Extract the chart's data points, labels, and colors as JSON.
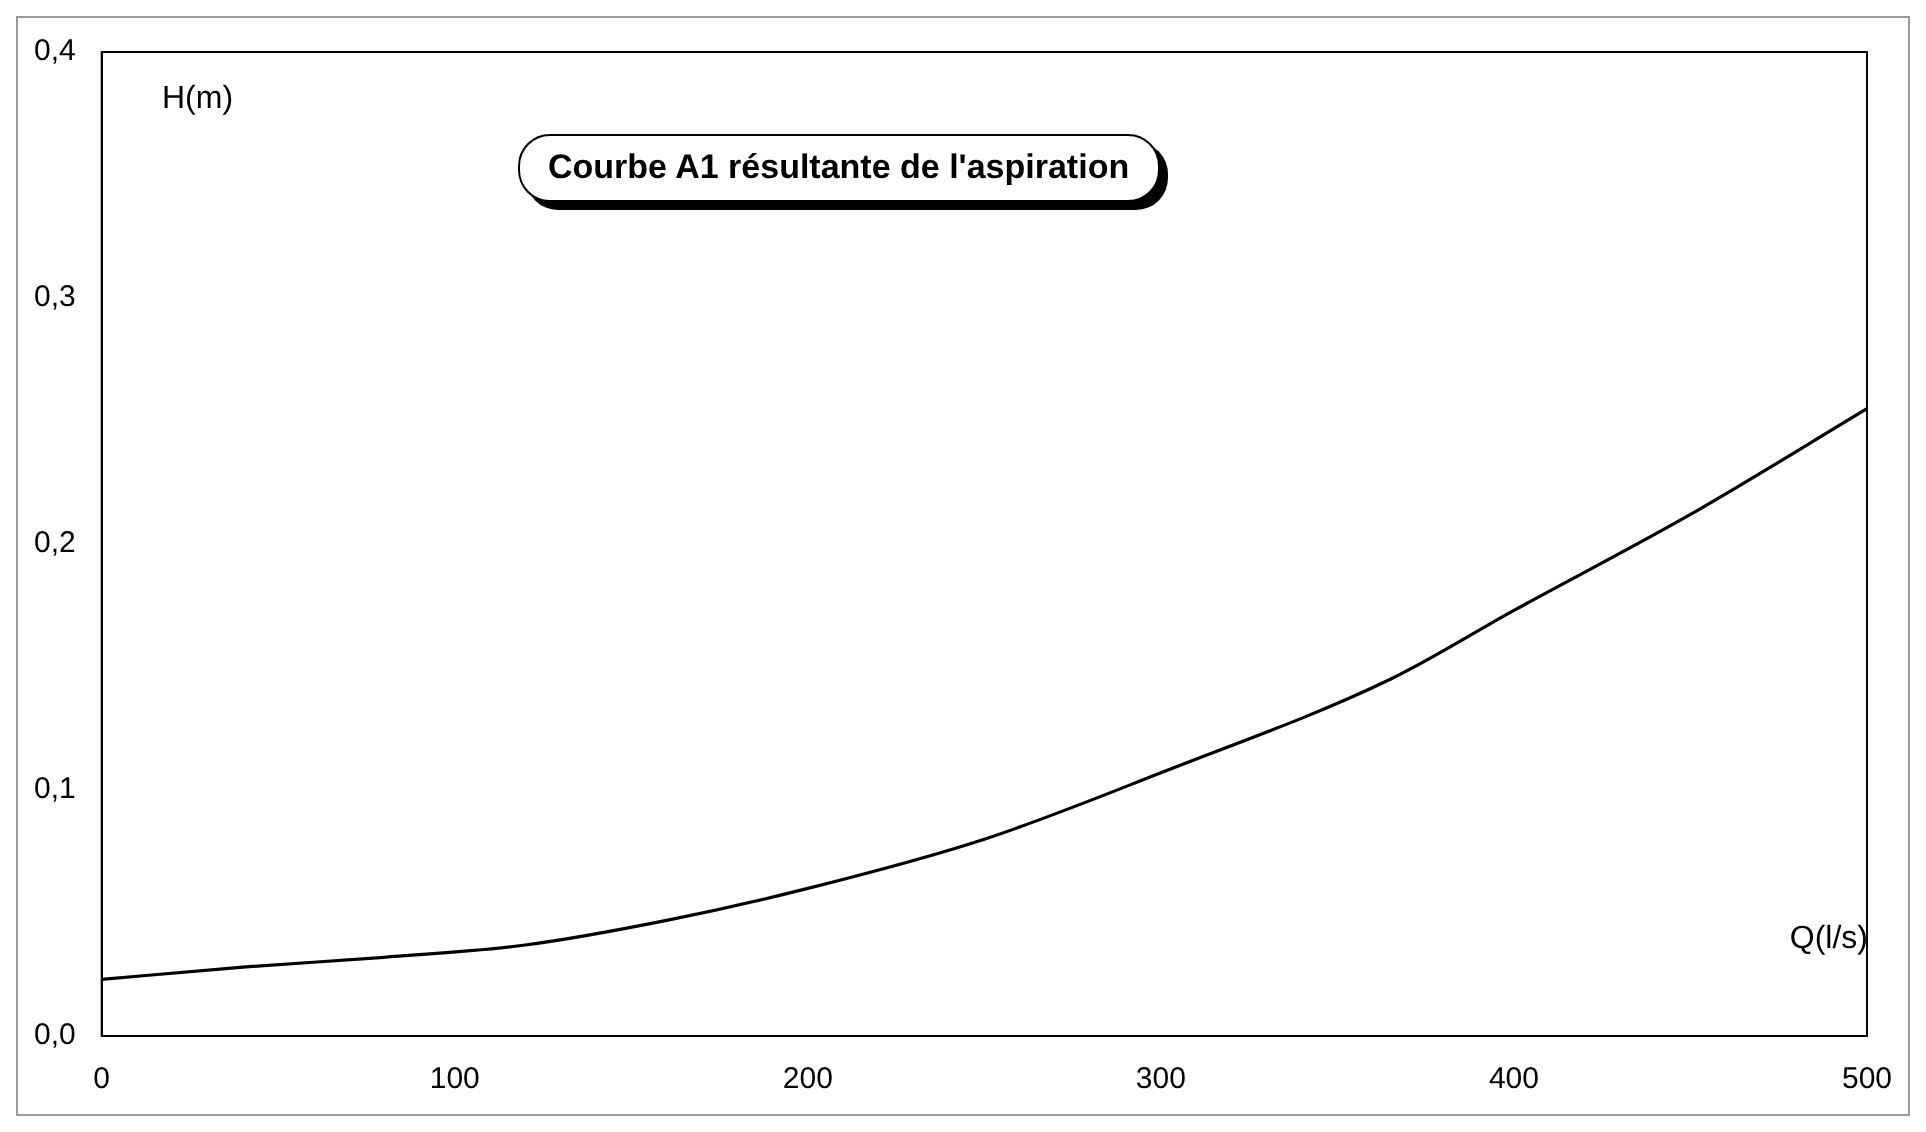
{
  "chart_data": {
    "type": "line",
    "title": "Courbe A1 résultante de l'aspiration",
    "xlabel": "Q(l/s)",
    "ylabel": "H(m)",
    "series": [
      {
        "color": "#000000",
        "x": [
          0,
          40,
          80,
          120,
          160,
          200,
          250,
          300,
          365,
          400,
          450,
          500
        ],
        "values": [
          0.023,
          0.028,
          0.032,
          0.037,
          0.047,
          0.06,
          0.08,
          0.107,
          0.145,
          0.173,
          0.212,
          0.255
        ]
      }
    ],
    "xlim": [
      0,
      500
    ],
    "xticks": [
      0,
      100,
      200,
      300,
      400,
      500
    ],
    "ylim": [
      0,
      0.4
    ],
    "yticks": [
      {
        "value": 0,
        "label": "0,0"
      },
      {
        "value": 0.1,
        "label": "0,1"
      },
      {
        "value": 0.2,
        "label": "0,2"
      },
      {
        "value": 0.3,
        "label": "0,3"
      },
      {
        "value": 0.4,
        "label": "0,4"
      }
    ],
    "grid": false,
    "legend": false,
    "marker": "none",
    "line_style": "solid"
  }
}
